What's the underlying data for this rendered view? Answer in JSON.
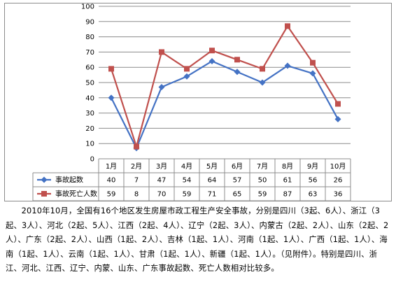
{
  "chart_data": {
    "type": "line",
    "categories": [
      "1月",
      "2月",
      "3月",
      "4月",
      "5月",
      "6月",
      "7月",
      "8月",
      "9月",
      "10月"
    ],
    "series": [
      {
        "name": "事故起数",
        "values": [
          40,
          7,
          47,
          54,
          64,
          57,
          50,
          61,
          56,
          26
        ],
        "color": "#4472c4",
        "marker": "diamond"
      },
      {
        "name": "事故死亡人数",
        "values": [
          59,
          8,
          70,
          59,
          71,
          65,
          59,
          87,
          63,
          36
        ],
        "color": "#c0504d",
        "marker": "square"
      }
    ],
    "ylim": [
      0,
      100
    ],
    "yticks": [
      0,
      10,
      20,
      30,
      40,
      50,
      60,
      70,
      80,
      90,
      100
    ],
    "grid": true,
    "data_table": true,
    "legend": "data-table-left",
    "title": "",
    "xlabel": "",
    "ylabel": ""
  },
  "caption": {
    "text": "2010年10月，全国有16个地区发生房屋市政工程生产安全事故，分别是四川（3起、6人）、浙江（3起、3人）、河北（2起、5人）、江西（2起、4人）、辽宁（2起、3人）、内蒙古（2起、2人）、山东（2起、2人）、广东（2起、2人）、山西（1起、2人）、吉林（1起、1人）、河南（1起、1人）、广西（1起、1人）、海南（1起、1人）、云南（1起、1人）、甘肃（1起、1人）、新疆（1起、1人）。（见附件）。特别是四川、浙江、河北、江西、辽宁、内蒙、山东、广东事故起数、死亡人数相对比较多。"
  }
}
